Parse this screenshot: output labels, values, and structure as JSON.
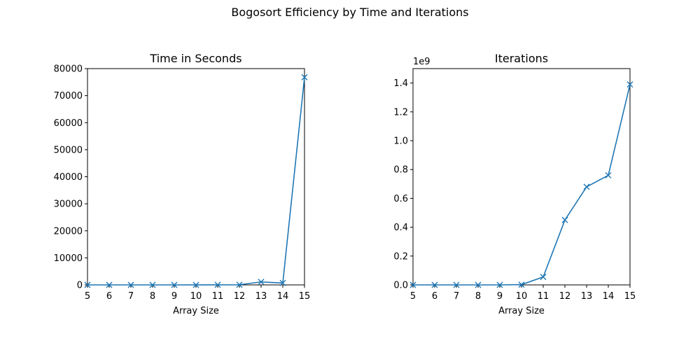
{
  "figure": {
    "suptitle": "Bogosort Efficiency by Time and Iterations"
  },
  "colors": {
    "series": "#1f77b4",
    "axis": "#000000",
    "background": "#ffffff"
  },
  "chart_data": [
    {
      "type": "line",
      "title": "Time in Seconds",
      "xlabel": "Array Size",
      "ylabel": "",
      "marker": "x",
      "x": [
        5,
        6,
        7,
        8,
        9,
        10,
        11,
        12,
        13,
        14,
        15
      ],
      "y": [
        0,
        0,
        0,
        0,
        0,
        5,
        20,
        60,
        1100,
        700,
        76800
      ],
      "xlim": [
        5,
        15
      ],
      "ylim": [
        0,
        80000
      ],
      "xticks": [
        5,
        6,
        7,
        8,
        9,
        10,
        11,
        12,
        13,
        14,
        15
      ],
      "yticks": [
        0,
        10000,
        20000,
        30000,
        40000,
        50000,
        60000,
        70000,
        80000
      ],
      "ytick_labels": [
        "0",
        "10000",
        "20000",
        "30000",
        "40000",
        "50000",
        "60000",
        "70000",
        "80000"
      ],
      "offset_text": "",
      "grid": false,
      "legend": "none"
    },
    {
      "type": "line",
      "title": "Iterations",
      "xlabel": "Array Size",
      "ylabel": "",
      "marker": "x",
      "x": [
        5,
        6,
        7,
        8,
        9,
        10,
        11,
        12,
        13,
        14,
        15
      ],
      "y": [
        0,
        0,
        0,
        0,
        0,
        2000000,
        55000000,
        450000000,
        680000000,
        760000000,
        1390000000
      ],
      "xlim": [
        5,
        15
      ],
      "ylim": [
        0,
        1500000000
      ],
      "xticks": [
        5,
        6,
        7,
        8,
        9,
        10,
        11,
        12,
        13,
        14,
        15
      ],
      "yticks": [
        0,
        200000000,
        400000000,
        600000000,
        800000000,
        1000000000,
        1200000000,
        1400000000
      ],
      "ytick_labels": [
        "0.0",
        "0.2",
        "0.4",
        "0.6",
        "0.8",
        "1.0",
        "1.2",
        "1.4"
      ],
      "offset_text": "1e9",
      "grid": false,
      "legend": "none"
    }
  ]
}
